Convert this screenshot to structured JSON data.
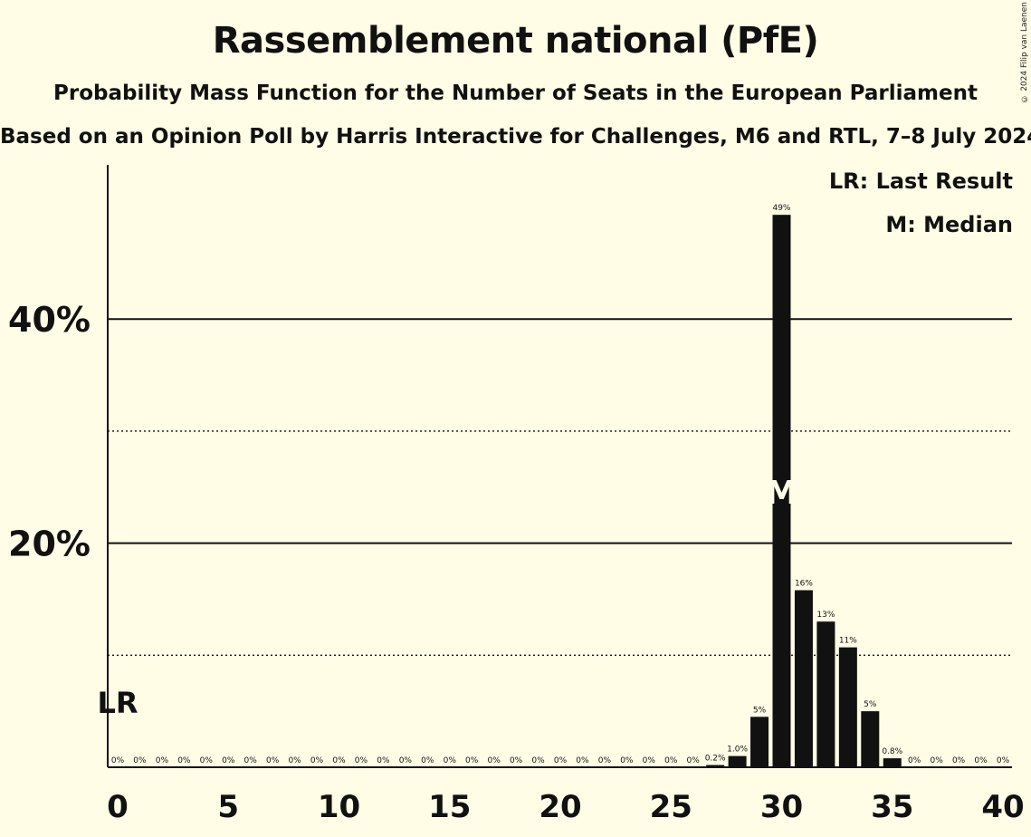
{
  "title": "Rassemblement national (PfE)",
  "subtitle": "Probability Mass Function for the Number of Seats in the European Parliament",
  "source": "Based on an Opinion Poll by Harris Interactive for Challenges, M6 and RTL, 7–8 July 2024",
  "copyright": "© 2024 Filip van Laenen",
  "legend": {
    "last_result": "LR: Last Result",
    "median": "M: Median"
  },
  "colors": {
    "background": "#fffde6",
    "bar": "#111111"
  },
  "chart_data": {
    "type": "bar",
    "xlabel": "",
    "ylabel": "",
    "x": [
      0,
      1,
      2,
      3,
      4,
      5,
      6,
      7,
      8,
      9,
      10,
      11,
      12,
      13,
      14,
      15,
      16,
      17,
      18,
      19,
      20,
      21,
      22,
      23,
      24,
      25,
      26,
      27,
      28,
      29,
      30,
      31,
      32,
      33,
      34,
      35,
      36,
      37,
      38,
      39,
      40
    ],
    "values": [
      0,
      0,
      0,
      0,
      0,
      0,
      0,
      0,
      0,
      0,
      0,
      0,
      0,
      0,
      0,
      0,
      0,
      0,
      0,
      0,
      0,
      0,
      0,
      0,
      0,
      0,
      0,
      0.2,
      1.0,
      4.5,
      49.3,
      15.8,
      13.0,
      10.7,
      5.0,
      0.8,
      0,
      0,
      0,
      0,
      0
    ],
    "labels": [
      "0%",
      "0%",
      "0%",
      "0%",
      "0%",
      "0%",
      "0%",
      "0%",
      "0%",
      "0%",
      "0%",
      "0%",
      "0%",
      "0%",
      "0%",
      "0%",
      "0%",
      "0%",
      "0%",
      "0%",
      "0%",
      "0%",
      "0%",
      "0%",
      "0%",
      "0%",
      "0%",
      "0.2%",
      "1.0%",
      "5%",
      "49%",
      "16%",
      "13%",
      "11%",
      "5%",
      "0.8%",
      "0%",
      "0%",
      "0%",
      "0%",
      "0%"
    ],
    "xticks": [
      0,
      5,
      10,
      15,
      20,
      25,
      30,
      35,
      40
    ],
    "xtick_labels": [
      "0",
      "5",
      "10",
      "15",
      "20",
      "25",
      "30",
      "35",
      "40"
    ],
    "yticks_labeled": [
      20,
      40
    ],
    "ytick_labels": [
      "20%",
      "40%"
    ],
    "yticks_dotted": [
      10,
      30
    ],
    "ylim": [
      0,
      53.7
    ],
    "xlim": [
      -0.5,
      40.5
    ],
    "last_result_seat": 0,
    "last_result_label": "LR",
    "median_seat": 30,
    "median_label": "M"
  }
}
